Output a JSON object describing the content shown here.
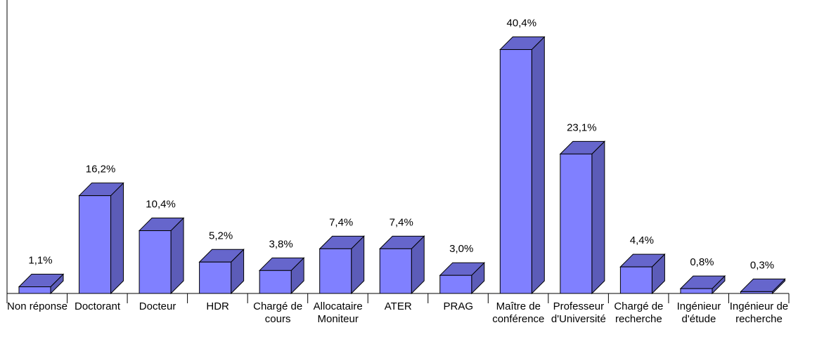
{
  "chart_data": {
    "type": "bar3d",
    "categories": [
      "Non réponse",
      "Doctorant",
      "Docteur",
      "HDR",
      "Chargé de cours",
      "Allocataire Moniteur",
      "ATER",
      "PRAG",
      "Maître de conférence",
      "Professeur d'Université",
      "Chargé de recherche",
      "Ingénieur d'étude",
      "Ingénieur de recherche"
    ],
    "values": [
      1.1,
      16.2,
      10.4,
      5.2,
      3.8,
      7.4,
      7.4,
      3.0,
      40.4,
      23.1,
      4.4,
      0.8,
      0.3
    ],
    "value_labels": [
      "1,1%",
      "16,2%",
      "10,4%",
      "5,2%",
      "3,8%",
      "7,4%",
      "7,4%",
      "3,0%",
      "40,4%",
      "23,1%",
      "4,4%",
      "0,8%",
      "0,3%"
    ],
    "color": "#8080ff"
  }
}
